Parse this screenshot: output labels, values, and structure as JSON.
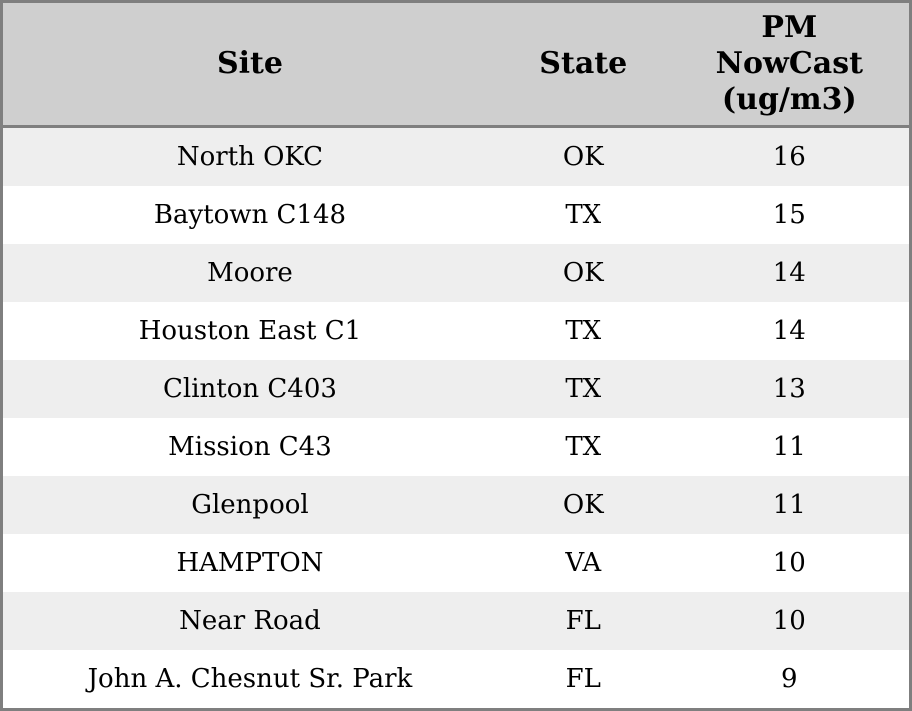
{
  "table": {
    "columns": [
      {
        "key": "site",
        "label": "Site"
      },
      {
        "key": "state",
        "label": "State"
      },
      {
        "key": "pm",
        "label": "PM NowCast (ug/m3)"
      }
    ],
    "rows": [
      {
        "site": "North OKC",
        "state": "OK",
        "pm": "16"
      },
      {
        "site": "Baytown C148",
        "state": "TX",
        "pm": "15"
      },
      {
        "site": "Moore",
        "state": "OK",
        "pm": "14"
      },
      {
        "site": "Houston East C1",
        "state": "TX",
        "pm": "14"
      },
      {
        "site": "Clinton C403",
        "state": "TX",
        "pm": "13"
      },
      {
        "site": "Mission C43",
        "state": "TX",
        "pm": "11"
      },
      {
        "site": "Glenpool",
        "state": "OK",
        "pm": "11"
      },
      {
        "site": "HAMPTON",
        "state": "VA",
        "pm": "10"
      },
      {
        "site": "Near Road",
        "state": "FL",
        "pm": "10"
      },
      {
        "site": "John A. Chesnut Sr. Park",
        "state": "FL",
        "pm": "9"
      }
    ]
  },
  "colors": {
    "border": "#7f7f7f",
    "header_bg": "#cfcfcf",
    "row_stripe_odd": "#eeeeee",
    "row_stripe_even": "#ffffff",
    "text": "#000000"
  }
}
